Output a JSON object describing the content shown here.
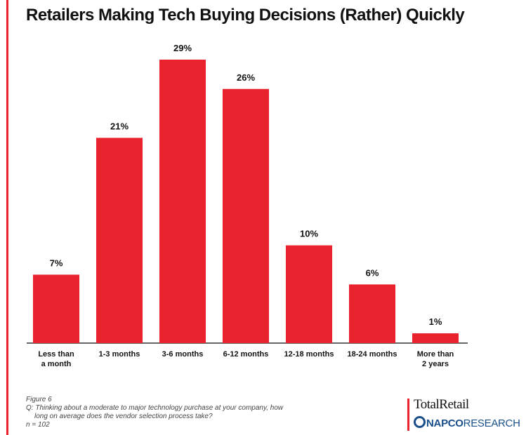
{
  "title": "Retailers Making Tech Buying Decisions (Rather) Quickly",
  "chart_data": {
    "type": "bar",
    "title": "Retailers Making Tech Buying Decisions (Rather) Quickly",
    "categories": [
      [
        "Less than",
        "a month"
      ],
      [
        "1-3 months"
      ],
      [
        "3-6 months"
      ],
      [
        "6-12 months"
      ],
      [
        "12-18 months"
      ],
      [
        "18-24 months"
      ],
      [
        "More than",
        "2 years"
      ]
    ],
    "values": [
      7,
      21,
      29,
      26,
      10,
      6,
      1
    ],
    "value_labels": [
      "7%",
      "21%",
      "29%",
      "26%",
      "10%",
      "6%",
      "1%"
    ],
    "unit": "%",
    "bar_color": "#e8232e",
    "ylim": [
      0,
      29
    ],
    "grid": false,
    "legend": "none"
  },
  "footnote": {
    "figure": "Figure 6",
    "question_line1": "Q: Thinking about a moderate to major technology purchase at your company, how",
    "question_line2": "long on average does the vendor selection process take?",
    "sample": "n = 102"
  },
  "brand": {
    "totalretail": "TotalRetail",
    "napco_prefix": "NAPCO",
    "napco_suffix": "RESEARCH"
  },
  "colors": {
    "accent": "#e8232e",
    "napco_blue": "#1a4f8b"
  }
}
